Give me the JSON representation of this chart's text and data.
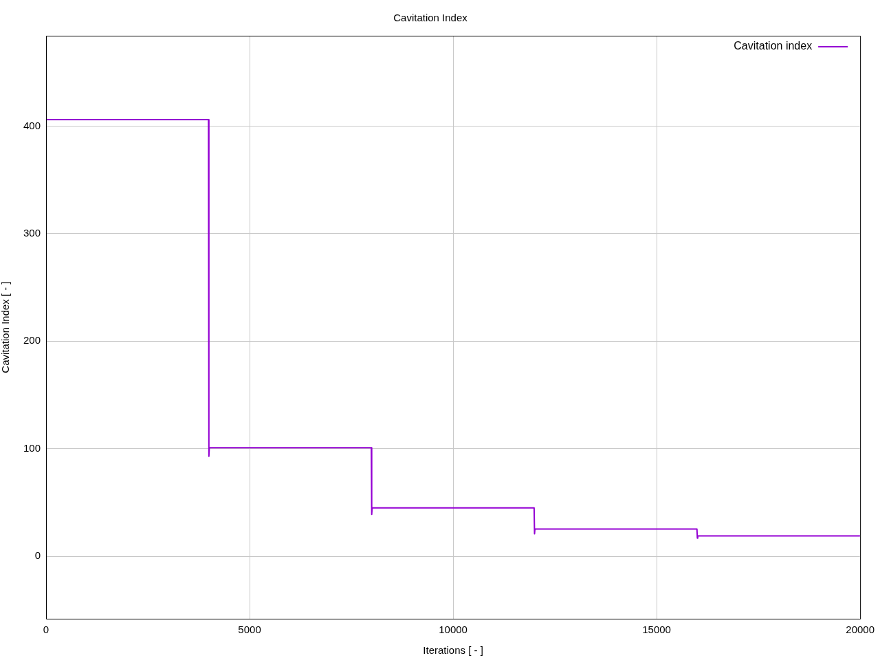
{
  "chart_data": {
    "type": "line",
    "title": "Cavitation Index",
    "xlabel": "Iterations [ - ]",
    "ylabel": "Cavitation Index [ - ]",
    "xlim": [
      0,
      20000
    ],
    "xticks": [
      0,
      5000,
      10000,
      15000,
      20000
    ],
    "ylim": [
      -58,
      484
    ],
    "yticks": [
      0,
      100,
      200,
      300,
      400
    ],
    "grid": true,
    "legend": "top right",
    "marker": "none",
    "line_style": "solid",
    "series": [
      {
        "name": "Cavitation index",
        "color": "#9400d3",
        "x": [
          0,
          3990,
          4000,
          4010,
          7990,
          8000,
          8010,
          11990,
          12000,
          12010,
          15990,
          16000,
          16010,
          20000
        ],
        "values": [
          406,
          406,
          93,
          101,
          101,
          39,
          45,
          45,
          21,
          25.4,
          25.4,
          17,
          19,
          19
        ]
      }
    ]
  }
}
